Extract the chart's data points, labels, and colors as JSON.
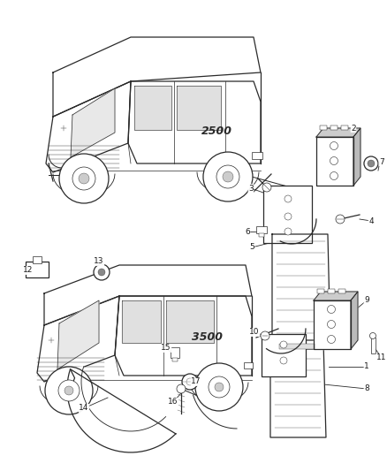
{
  "bg_color": "#ffffff",
  "line_color": "#2a2a2a",
  "label_color": "#1a1a1a",
  "fig_width": 4.38,
  "fig_height": 5.33,
  "dpi": 100,
  "van1_text": "2500",
  "van2_text": "3500",
  "lw_main": 0.9,
  "lw_thin": 0.5,
  "lw_thick": 1.2,
  "label_fontsize": 6.5,
  "van_text_fontsize": 9.0
}
